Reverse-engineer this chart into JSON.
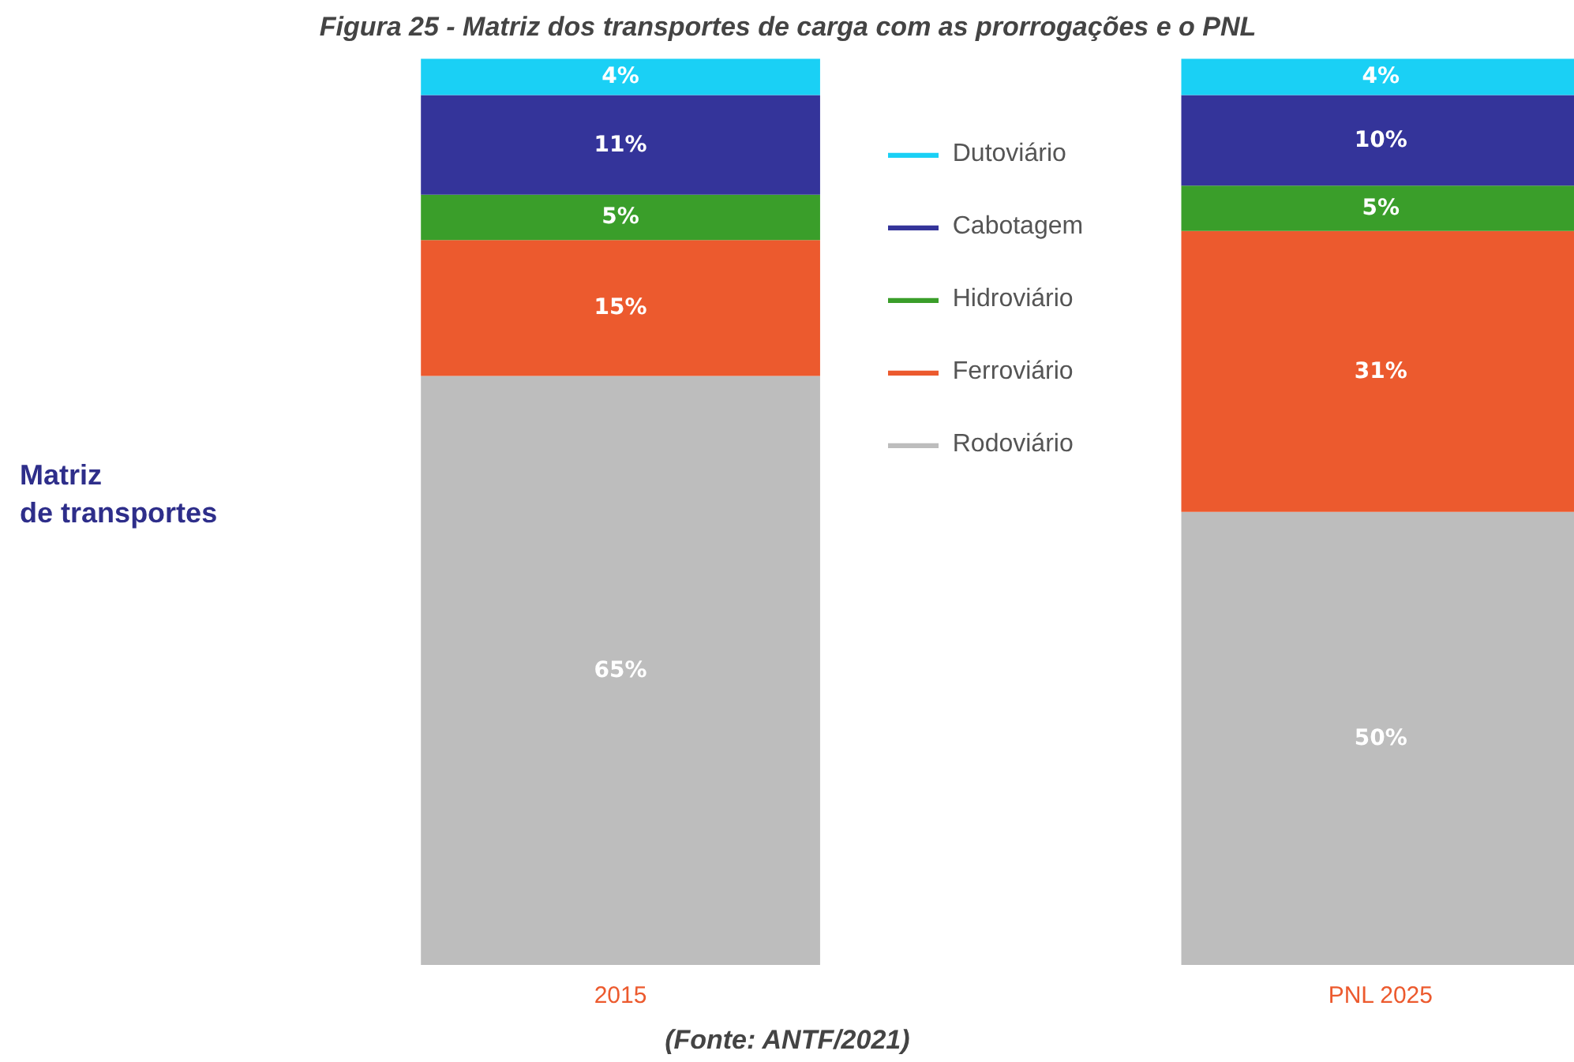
{
  "chart_data": {
    "type": "bar",
    "stacked": true,
    "title": "Figura 25 - Matriz dos transportes de carga com as prorrogações e o PNL",
    "categories": [
      "2015",
      "PNL 2025"
    ],
    "series": [
      {
        "name": "Rodoviário",
        "color": "#bdbdbd",
        "values": [
          65,
          50
        ],
        "value_labels": [
          "65%",
          "50%"
        ]
      },
      {
        "name": "Ferroviário",
        "color": "#ec5a2e",
        "values": [
          15,
          31
        ],
        "value_labels": [
          "15%",
          "31%"
        ]
      },
      {
        "name": "Hidroviário",
        "color": "#3a9e2a",
        "values": [
          5,
          5
        ],
        "value_labels": [
          "5%",
          "5%"
        ]
      },
      {
        "name": "Cabotagem",
        "color": "#34349a",
        "values": [
          11,
          10
        ],
        "value_labels": [
          "11%",
          "10%"
        ]
      },
      {
        "name": "Dutoviário",
        "color": "#1ad0f5",
        "values": [
          4,
          4
        ],
        "value_labels": [
          "4%",
          "4%"
        ]
      }
    ],
    "legend": "center",
    "annotations": [
      "Matriz\nde transportes",
      "(Fonte: ANTF/2021)"
    ]
  }
}
